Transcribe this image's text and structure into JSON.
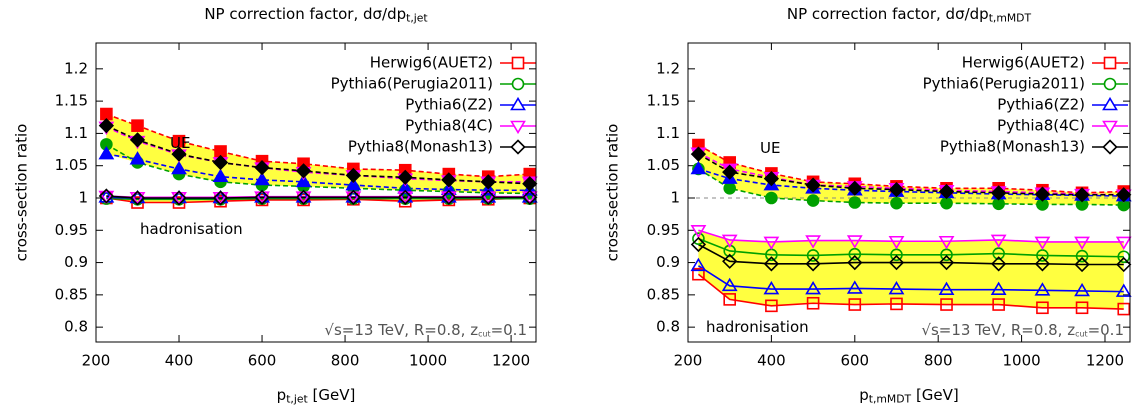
{
  "chart_data": [
    {
      "type": "line",
      "title": [
        "NP correction factor, dσ/dp",
        "t,jet"
      ],
      "xlabel": [
        "p",
        "t,jet",
        " [GeV]"
      ],
      "ylabel": "cross-section ratio",
      "annotations": [
        [
          "UE"
        ],
        [
          "hadronisation"
        ],
        [
          "√s=13 TeV, R=0.8, z",
          "cut",
          "=0.1"
        ]
      ],
      "band_color": "#ffff40",
      "xlim": [
        200,
        1260
      ],
      "ylim": [
        0.777,
        1.24
      ],
      "xticks": [
        200,
        400,
        600,
        800,
        1000,
        1200
      ],
      "yticks": [
        0.8,
        0.85,
        0.9,
        0.95,
        1,
        1.05,
        1.1,
        1.15,
        1.2
      ],
      "x": [
        225,
        300,
        400,
        500,
        600,
        700,
        820,
        945,
        1050,
        1145,
        1245
      ],
      "series": [
        {
          "name": "Herwig6(AUET2)",
          "color": "#ff0000",
          "marker": "square",
          "ue_values": [
            1.13,
            1.112,
            1.088,
            1.072,
            1.057,
            1.053,
            1.045,
            1.043,
            1.037,
            1.033,
            1.037
          ],
          "had_values": [
            1.0,
            0.993,
            0.993,
            0.995,
            0.997,
            0.997,
            0.998,
            0.995,
            0.997,
            0.998,
            1.0
          ]
        },
        {
          "name": "Pythia6(Perugia2011)",
          "color": "#00a000",
          "marker": "circle",
          "ue_values": [
            1.083,
            1.055,
            1.037,
            1.025,
            1.02,
            1.018,
            1.015,
            1.012,
            1.01,
            1.008,
            1.007
          ],
          "had_values": [
            0.999,
            0.998,
            0.998,
            0.998,
            0.999,
            0.999,
            0.999,
            0.999,
            0.999,
            0.999,
            0.999
          ]
        },
        {
          "name": "Pythia6(Z2)",
          "color": "#0000ff",
          "marker": "triangle-up",
          "ue_values": [
            1.068,
            1.06,
            1.045,
            1.033,
            1.028,
            1.025,
            1.02,
            1.015,
            1.013,
            1.012,
            1.012
          ],
          "had_values": [
            1.001,
            1.0,
            1.0,
            1.0,
            1.001,
            1.001,
            1.001,
            1.001,
            1.001,
            1.001,
            1.001
          ]
        },
        {
          "name": "Pythia8(4C)",
          "color": "#ff00ff",
          "marker": "triangle-down",
          "ue_values": [
            1.11,
            1.088,
            1.067,
            1.055,
            1.047,
            1.04,
            1.035,
            1.03,
            1.027,
            1.025,
            1.025
          ],
          "had_values": [
            1.003,
            1.001,
            1.001,
            1.001,
            1.002,
            1.002,
            1.002,
            1.002,
            1.002,
            1.002,
            1.002
          ]
        },
        {
          "name": "Pythia8(Monash13)",
          "color": "#000000",
          "marker": "diamond",
          "ue_values": [
            1.112,
            1.09,
            1.068,
            1.055,
            1.047,
            1.042,
            1.035,
            1.032,
            1.028,
            1.025,
            1.022
          ],
          "had_values": [
            1.003,
            1.0,
            1.0,
            1.0,
            1.001,
            1.001,
            1.001,
            1.001,
            1.001,
            1.001,
            1.001
          ]
        }
      ]
    },
    {
      "type": "line",
      "title": [
        "NP correction factor, dσ/dp",
        "t,mMDT"
      ],
      "xlabel": [
        "p",
        "t,mMDT",
        " [GeV]"
      ],
      "ylabel": "cross-section ratio",
      "annotations": [
        [
          "UE"
        ],
        [
          "hadronisation"
        ],
        [
          "√s=13 TeV, R=0.8, z",
          "cut",
          "=0.1"
        ]
      ],
      "band_color": "#ffff40",
      "reference_line": 1,
      "xlim": [
        200,
        1260
      ],
      "ylim": [
        0.777,
        1.24
      ],
      "xticks": [
        200,
        400,
        600,
        800,
        1000,
        1200
      ],
      "yticks": [
        0.8,
        0.85,
        0.9,
        0.95,
        1,
        1.05,
        1.1,
        1.15,
        1.2
      ],
      "x": [
        225,
        300,
        400,
        500,
        600,
        700,
        820,
        945,
        1050,
        1145,
        1245
      ],
      "series": [
        {
          "name": "Herwig6(AUET2)",
          "color": "#ff0000",
          "marker": "square",
          "ue_values": [
            1.082,
            1.055,
            1.038,
            1.025,
            1.022,
            1.018,
            1.015,
            1.015,
            1.012,
            1.008,
            1.01
          ],
          "had_values": [
            0.882,
            0.843,
            0.833,
            0.837,
            0.835,
            0.836,
            0.835,
            0.835,
            0.83,
            0.83,
            0.828
          ]
        },
        {
          "name": "Pythia6(Perugia2011)",
          "color": "#00a000",
          "marker": "circle",
          "ue_values": [
            1.045,
            1.015,
            1.0,
            0.996,
            0.993,
            0.992,
            0.992,
            0.991,
            0.99,
            0.99,
            0.989
          ],
          "had_values": [
            0.937,
            0.918,
            0.912,
            0.911,
            0.913,
            0.912,
            0.912,
            0.914,
            0.911,
            0.91,
            0.909
          ]
        },
        {
          "name": "Pythia6(Z2)",
          "color": "#0000ff",
          "marker": "triangle-up",
          "ue_values": [
            1.045,
            1.03,
            1.02,
            1.015,
            1.012,
            1.01,
            1.008,
            1.006,
            1.005,
            1.004,
            1.003
          ],
          "had_values": [
            0.895,
            0.864,
            0.859,
            0.859,
            0.86,
            0.859,
            0.858,
            0.858,
            0.857,
            0.856,
            0.855
          ]
        },
        {
          "name": "Pythia8(4C)",
          "color": "#ff00ff",
          "marker": "triangle-down",
          "ue_values": [
            1.07,
            1.045,
            1.032,
            1.02,
            1.018,
            1.015,
            1.012,
            1.01,
            1.008,
            1.006,
            1.005
          ],
          "had_values": [
            0.95,
            0.935,
            0.932,
            0.934,
            0.934,
            0.933,
            0.933,
            0.935,
            0.932,
            0.932,
            0.932
          ]
        },
        {
          "name": "Pythia8(Monash13)",
          "color": "#000000",
          "marker": "diamond",
          "ue_values": [
            1.068,
            1.04,
            1.03,
            1.02,
            1.015,
            1.013,
            1.01,
            1.008,
            1.006,
            1.005,
            1.005
          ],
          "had_values": [
            0.928,
            0.902,
            0.898,
            0.898,
            0.9,
            0.9,
            0.9,
            0.898,
            0.898,
            0.897,
            0.897
          ]
        }
      ]
    }
  ]
}
